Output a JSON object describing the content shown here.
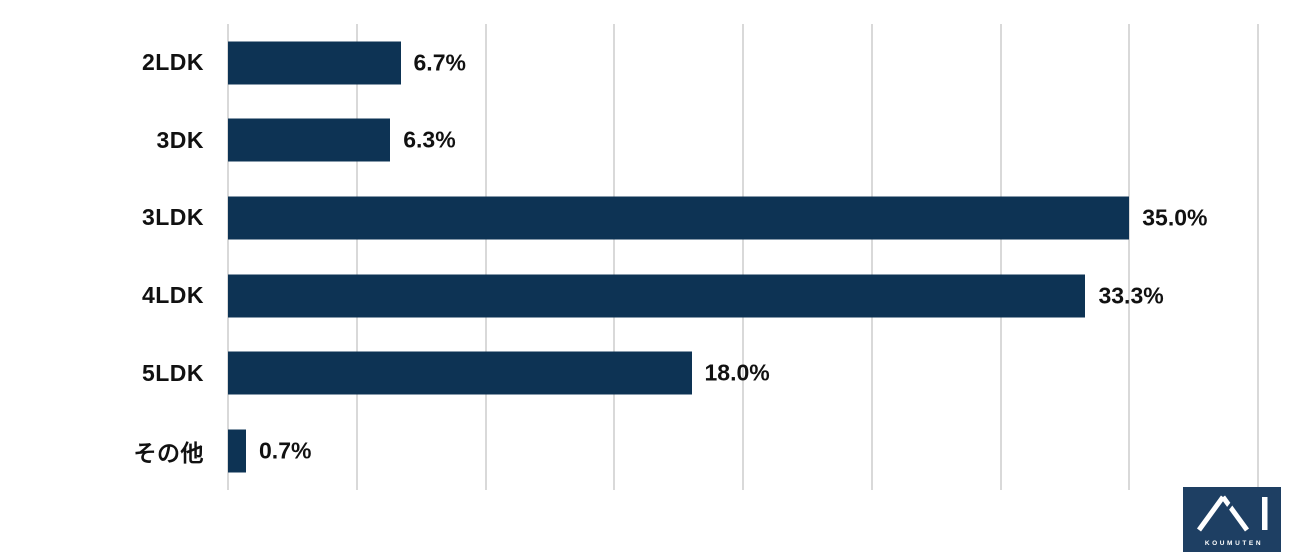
{
  "chart_data": {
    "type": "bar",
    "orientation": "horizontal",
    "title": "",
    "xlabel": "",
    "ylabel": "",
    "categories": [
      "2LDK",
      "3DK",
      "3LDK",
      "4LDK",
      "5LDK",
      "その他"
    ],
    "values": [
      6.7,
      6.3,
      35.0,
      33.3,
      18.0,
      0.7
    ],
    "value_labels": [
      "6.7%",
      "6.3%",
      "35.0%",
      "33.3%",
      "18.0%",
      "0.7%"
    ],
    "xlim": [
      0,
      40
    ],
    "gridline_interval": 5,
    "grid": true,
    "legend": false,
    "bar_color": "#0d3354",
    "gridline_color": "#d9d9d9",
    "label_color": "#111111"
  },
  "logo": {
    "text": "KOUMUTEN",
    "mark": "ai-chevron-logo",
    "background": "#1e3f63",
    "foreground": "#ffffff"
  }
}
